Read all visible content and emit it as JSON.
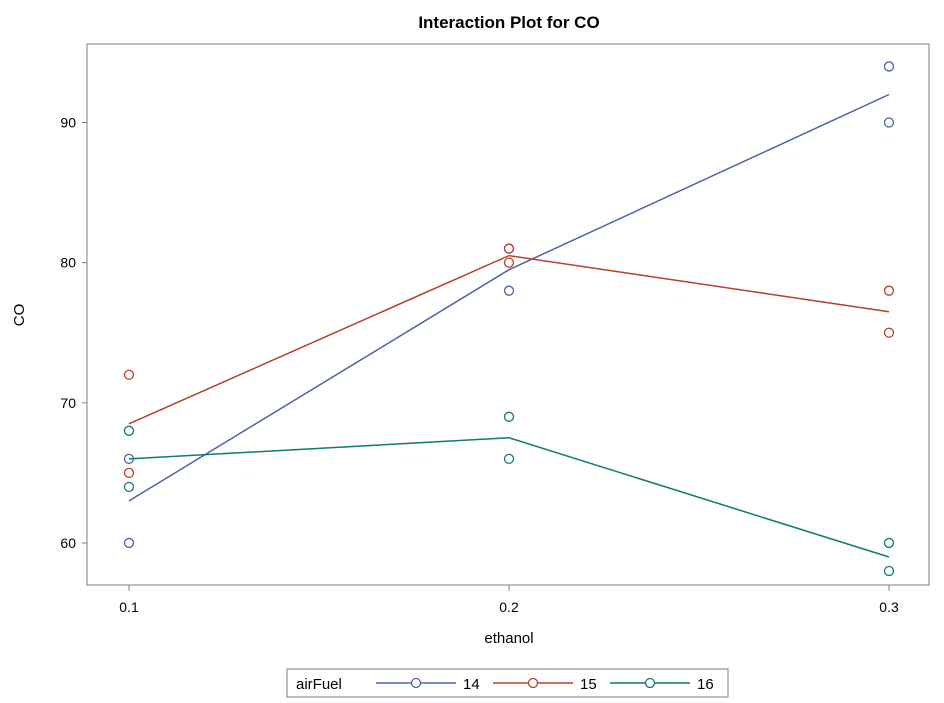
{
  "chart_data": {
    "type": "line",
    "title": "Interaction Plot for CO",
    "xlabel": "ethanol",
    "ylabel": "CO",
    "x_ticks": [
      "0.1",
      "0.2",
      "0.3"
    ],
    "y_ticks": [
      "60",
      "70",
      "80",
      "90"
    ],
    "xlim": [
      0.1,
      0.3
    ],
    "ylim": [
      57,
      95.6
    ],
    "grid": false,
    "legend_title": "airFuel",
    "legend_placement": "bottom",
    "series": [
      {
        "name": "14",
        "color": "#4e63a8",
        "line": [
          {
            "x": 0.1,
            "y": 63
          },
          {
            "x": 0.2,
            "y": 79.5
          },
          {
            "x": 0.3,
            "y": 92
          }
        ],
        "points": [
          {
            "x": 0.1,
            "y": 66
          },
          {
            "x": 0.1,
            "y": 60
          },
          {
            "x": 0.2,
            "y": 81
          },
          {
            "x": 0.2,
            "y": 78
          },
          {
            "x": 0.3,
            "y": 94
          },
          {
            "x": 0.3,
            "y": 90
          }
        ]
      },
      {
        "name": "15",
        "color": "#b5412a",
        "line": [
          {
            "x": 0.1,
            "y": 68.5
          },
          {
            "x": 0.2,
            "y": 80.5
          },
          {
            "x": 0.3,
            "y": 76.5
          }
        ],
        "points": [
          {
            "x": 0.1,
            "y": 72
          },
          {
            "x": 0.1,
            "y": 65
          },
          {
            "x": 0.2,
            "y": 81
          },
          {
            "x": 0.2,
            "y": 80
          },
          {
            "x": 0.3,
            "y": 78
          },
          {
            "x": 0.3,
            "y": 75
          }
        ]
      },
      {
        "name": "16",
        "color": "#107a70",
        "line": [
          {
            "x": 0.1,
            "y": 66
          },
          {
            "x": 0.2,
            "y": 67.5
          },
          {
            "x": 0.3,
            "y": 59
          }
        ],
        "points": [
          {
            "x": 0.1,
            "y": 68
          },
          {
            "x": 0.1,
            "y": 64
          },
          {
            "x": 0.2,
            "y": 69
          },
          {
            "x": 0.2,
            "y": 66
          },
          {
            "x": 0.3,
            "y": 60
          },
          {
            "x": 0.3,
            "y": 58
          }
        ]
      }
    ]
  }
}
